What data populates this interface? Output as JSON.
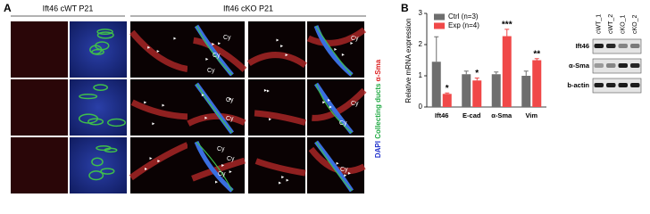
{
  "figure": {
    "panel_a": {
      "label": "A",
      "header_wt": "Ift46 cWT P21",
      "header_ko": "Ift46 cKO P21",
      "stain": {
        "dapi": "DAPI",
        "ducts": "Collecting ducts",
        "sma": "α-Sma"
      },
      "cy_labels": [
        "Cy",
        "Cy",
        "Cy",
        "Cy",
        "Cy",
        "Cy",
        "Cy",
        "Cy",
        "Cy",
        "Cy",
        "Cy",
        "Cy"
      ]
    },
    "panel_b": {
      "label": "B",
      "blot": {
        "lanes": [
          "cWT_1",
          "cWT_2",
          "cKO_1",
          "cKO_2"
        ],
        "rows": [
          "Ift46",
          "α-Sma",
          "b-actin"
        ]
      }
    }
  },
  "chart_data": {
    "type": "bar",
    "y_label": "Relative mRNA expression",
    "categories": [
      "Ift46",
      "E-cad",
      "α-Sma",
      "Vim"
    ],
    "series": [
      {
        "name": "Ctrl (n=3)",
        "color": "#6e6e6e",
        "values": [
          1.45,
          1.05,
          1.05,
          1.0
        ],
        "errors": [
          0.8,
          0.1,
          0.07,
          0.15
        ]
      },
      {
        "name": "Exp (n=4)",
        "color": "#f04848",
        "values": [
          0.42,
          0.85,
          2.27,
          1.5
        ],
        "errors": [
          0.03,
          0.08,
          0.22,
          0.05
        ],
        "significance": [
          "*",
          "*",
          "***",
          "**"
        ]
      }
    ],
    "ylim": [
      0,
      3
    ],
    "yticks": [
      0,
      1,
      2,
      3
    ],
    "legend": "top-left"
  }
}
